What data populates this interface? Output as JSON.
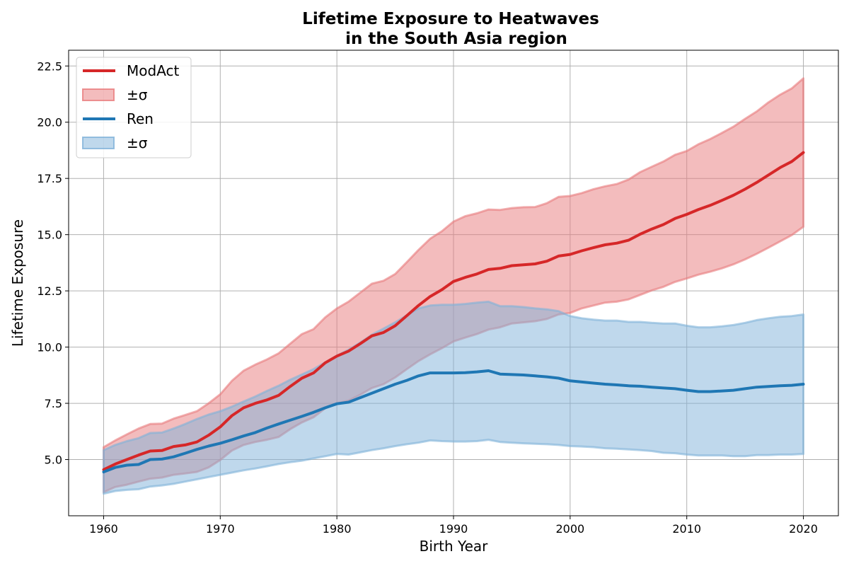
{
  "chart_data": {
    "type": "line",
    "title_line1": "Lifetime Exposure to Heatwaves",
    "title_line2": "in the South Asia region",
    "xlabel": "Birth Year",
    "ylabel": "Lifetime Exposure",
    "xlim": [
      1957,
      2023
    ],
    "ylim": [
      2.5,
      23.2
    ],
    "xticks": [
      1960,
      1970,
      1980,
      1990,
      2000,
      2010,
      2020
    ],
    "yticks": [
      5.0,
      7.5,
      10.0,
      12.5,
      15.0,
      17.5,
      20.0,
      22.5
    ],
    "xtick_labels": [
      "1960",
      "1970",
      "1980",
      "1990",
      "2000",
      "2010",
      "2020"
    ],
    "ytick_labels": [
      "5.0",
      "7.5",
      "10.0",
      "12.5",
      "15.0",
      "17.5",
      "20.0",
      "22.5"
    ],
    "grid": true,
    "legend_placement": "upper-left",
    "x": [
      1960,
      1961,
      1962,
      1963,
      1964,
      1965,
      1966,
      1967,
      1968,
      1969,
      1970,
      1971,
      1972,
      1973,
      1974,
      1975,
      1976,
      1977,
      1978,
      1979,
      1980,
      1981,
      1982,
      1983,
      1984,
      1985,
      1986,
      1987,
      1988,
      1989,
      1990,
      1991,
      1992,
      1993,
      1994,
      1995,
      1996,
      1997,
      1998,
      1999,
      2000,
      2001,
      2002,
      2003,
      2004,
      2005,
      2006,
      2007,
      2008,
      2009,
      2010,
      2011,
      2012,
      2013,
      2014,
      2015,
      2016,
      2017,
      2018,
      2019,
      2020
    ],
    "series": [
      {
        "name": "ModAct",
        "band_name": "±σ",
        "color": "#d62728",
        "band_color": "#e87a7c",
        "mean": [
          4.55,
          4.8,
          5.0,
          5.2,
          5.38,
          5.4,
          5.58,
          5.65,
          5.78,
          6.08,
          6.45,
          6.95,
          7.3,
          7.5,
          7.65,
          7.85,
          8.25,
          8.62,
          8.85,
          9.3,
          9.6,
          9.82,
          10.15,
          10.5,
          10.65,
          10.95,
          11.4,
          11.85,
          12.25,
          12.55,
          12.92,
          13.1,
          13.25,
          13.45,
          13.5,
          13.62,
          13.66,
          13.7,
          13.82,
          14.05,
          14.12,
          14.28,
          14.42,
          14.55,
          14.62,
          14.75,
          15.02,
          15.25,
          15.45,
          15.72,
          15.9,
          16.12,
          16.3,
          16.52,
          16.75,
          17.02,
          17.32,
          17.65,
          17.98,
          18.25,
          18.65
        ],
        "upper": [
          5.55,
          5.85,
          6.12,
          6.38,
          6.58,
          6.6,
          6.82,
          6.98,
          7.15,
          7.5,
          7.9,
          8.5,
          8.95,
          9.22,
          9.45,
          9.72,
          10.15,
          10.58,
          10.8,
          11.32,
          11.72,
          12.02,
          12.42,
          12.82,
          12.95,
          13.25,
          13.78,
          14.32,
          14.82,
          15.15,
          15.58,
          15.82,
          15.95,
          16.12,
          16.1,
          16.18,
          16.22,
          16.23,
          16.4,
          16.68,
          16.72,
          16.85,
          17.02,
          17.15,
          17.25,
          17.45,
          17.78,
          18.02,
          18.25,
          18.55,
          18.72,
          19.02,
          19.25,
          19.52,
          19.8,
          20.15,
          20.48,
          20.88,
          21.22,
          21.5,
          21.95
        ],
        "lower": [
          3.55,
          3.78,
          3.88,
          4.02,
          4.15,
          4.2,
          4.32,
          4.38,
          4.45,
          4.65,
          4.98,
          5.4,
          5.65,
          5.78,
          5.88,
          6.0,
          6.35,
          6.65,
          6.88,
          7.28,
          7.5,
          7.62,
          7.88,
          8.18,
          8.35,
          8.65,
          9.02,
          9.38,
          9.68,
          9.95,
          10.25,
          10.42,
          10.58,
          10.78,
          10.88,
          11.05,
          11.1,
          11.15,
          11.25,
          11.45,
          11.52,
          11.72,
          11.85,
          11.98,
          12.02,
          12.12,
          12.32,
          12.52,
          12.68,
          12.9,
          13.05,
          13.22,
          13.35,
          13.5,
          13.68,
          13.9,
          14.15,
          14.42,
          14.7,
          14.98,
          15.35
        ]
      },
      {
        "name": "Ren",
        "band_name": "±σ",
        "color": "#1f77b4",
        "band_color": "#7fb2d9",
        "mean": [
          4.45,
          4.65,
          4.75,
          4.78,
          5.0,
          5.02,
          5.12,
          5.28,
          5.45,
          5.6,
          5.72,
          5.88,
          6.05,
          6.2,
          6.4,
          6.58,
          6.75,
          6.92,
          7.1,
          7.3,
          7.48,
          7.55,
          7.75,
          7.95,
          8.15,
          8.35,
          8.52,
          8.72,
          8.85,
          8.85,
          8.85,
          8.86,
          8.9,
          8.95,
          8.8,
          8.78,
          8.76,
          8.72,
          8.68,
          8.62,
          8.5,
          8.45,
          8.4,
          8.35,
          8.32,
          8.28,
          8.26,
          8.22,
          8.18,
          8.15,
          8.08,
          8.02,
          8.02,
          8.05,
          8.08,
          8.15,
          8.22,
          8.25,
          8.28,
          8.3,
          8.35
        ],
        "upper": [
          5.42,
          5.65,
          5.82,
          5.95,
          6.18,
          6.2,
          6.38,
          6.58,
          6.8,
          7.0,
          7.15,
          7.35,
          7.58,
          7.8,
          8.05,
          8.28,
          8.55,
          8.78,
          9.02,
          9.32,
          9.62,
          9.88,
          10.2,
          10.55,
          10.82,
          11.1,
          11.42,
          11.72,
          11.85,
          11.88,
          11.88,
          11.92,
          11.98,
          12.02,
          11.82,
          11.82,
          11.78,
          11.72,
          11.68,
          11.6,
          11.38,
          11.28,
          11.22,
          11.18,
          11.18,
          11.12,
          11.12,
          11.08,
          11.05,
          11.05,
          10.95,
          10.88,
          10.88,
          10.92,
          10.98,
          11.08,
          11.2,
          11.28,
          11.35,
          11.38,
          11.45
        ],
        "lower": [
          3.48,
          3.6,
          3.65,
          3.68,
          3.8,
          3.85,
          3.92,
          4.02,
          4.12,
          4.22,
          4.32,
          4.42,
          4.52,
          4.6,
          4.7,
          4.8,
          4.88,
          4.95,
          5.05,
          5.15,
          5.25,
          5.22,
          5.32,
          5.42,
          5.5,
          5.6,
          5.68,
          5.75,
          5.85,
          5.82,
          5.8,
          5.8,
          5.82,
          5.88,
          5.78,
          5.75,
          5.72,
          5.7,
          5.68,
          5.65,
          5.6,
          5.58,
          5.55,
          5.5,
          5.48,
          5.45,
          5.42,
          5.38,
          5.3,
          5.28,
          5.22,
          5.18,
          5.18,
          5.18,
          5.15,
          5.15,
          5.2,
          5.2,
          5.22,
          5.22,
          5.25
        ]
      }
    ]
  }
}
